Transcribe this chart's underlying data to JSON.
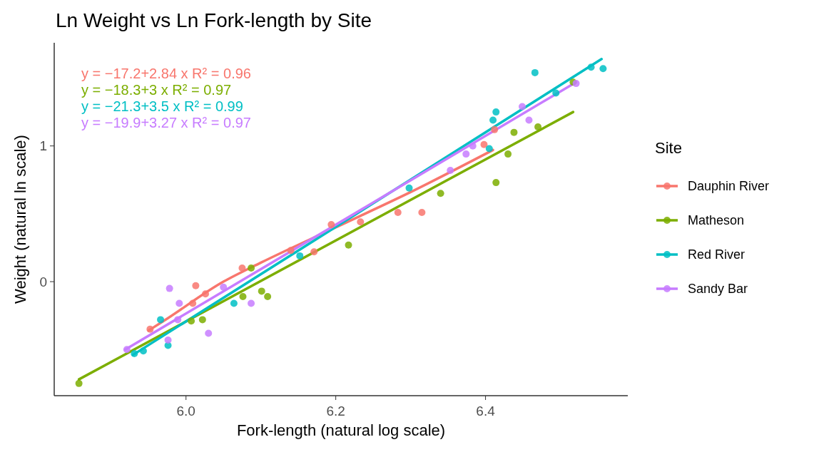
{
  "chart_data": {
    "type": "scatter",
    "title": "Ln Weight vs Ln Fork-length by Site",
    "xlabel": "Fork-length (natural log scale)",
    "ylabel": "Weight (natural ln scale)",
    "legend_title": "Site",
    "legend": "right",
    "grid": false,
    "marker": "circle",
    "xlim": [
      5.824,
      6.59
    ],
    "ylim": [
      -0.84,
      1.76
    ],
    "xticks": [
      {
        "value": 6.0,
        "label": "6.0"
      },
      {
        "value": 6.2,
        "label": "6.2"
      },
      {
        "value": 6.4,
        "label": "6.4"
      }
    ],
    "yticks": [
      0,
      1
    ],
    "series": [
      {
        "name": "Dauphin River",
        "color": "#f8766d",
        "x": [
          5.952,
          6.009,
          6.013,
          6.026,
          6.075,
          6.14,
          6.171,
          6.194,
          6.233,
          6.283,
          6.315,
          6.398,
          6.412
        ],
        "values": [
          -0.35,
          -0.16,
          -0.03,
          -0.09,
          0.1,
          0.23,
          0.22,
          0.42,
          0.44,
          0.51,
          0.51,
          1.01,
          1.12
        ]
      },
      {
        "name": "Matheson",
        "color": "#7cae00",
        "x": [
          5.857,
          6.007,
          6.022,
          6.076,
          6.087,
          6.101,
          6.109,
          6.217,
          6.34,
          6.414,
          6.43,
          6.438,
          6.47,
          6.517
        ],
        "values": [
          -0.75,
          -0.29,
          -0.28,
          -0.11,
          0.1,
          -0.07,
          -0.11,
          0.27,
          0.65,
          0.73,
          0.94,
          1.1,
          1.14,
          1.47
        ]
      },
      {
        "name": "Red River",
        "color": "#00bfc4",
        "x": [
          5.931,
          5.943,
          5.966,
          5.976,
          6.064,
          6.152,
          6.298,
          6.405,
          6.41,
          6.414,
          6.466,
          6.494,
          6.541,
          6.557
        ],
        "values": [
          -0.53,
          -0.51,
          -0.28,
          -0.47,
          -0.16,
          0.19,
          0.69,
          0.98,
          1.19,
          1.25,
          1.54,
          1.39,
          1.58,
          1.57
        ]
      },
      {
        "name": "Sandy Bar",
        "color": "#c77cff",
        "x": [
          5.921,
          5.976,
          5.978,
          5.989,
          5.991,
          6.03,
          6.05,
          6.087,
          6.353,
          6.374,
          6.383,
          6.449,
          6.458,
          6.521
        ],
        "values": [
          -0.5,
          -0.43,
          -0.05,
          -0.28,
          -0.16,
          -0.38,
          -0.04,
          -0.16,
          0.82,
          0.94,
          1.0,
          1.29,
          1.19,
          1.46
        ]
      },
      {
        "type": "line",
        "marker": "none",
        "color": "#f8766d",
        "x": [
          5.95,
          5.97,
          6.05,
          6.1,
          6.2,
          6.3,
          6.41
        ],
        "values": [
          -0.36,
          -0.29,
          0.0,
          0.14,
          0.4,
          0.66,
          0.97
        ]
      },
      {
        "type": "line",
        "marker": "none",
        "color": "#7cae00",
        "x": [
          5.857,
          6.517
        ],
        "values": [
          -0.72,
          1.25
        ]
      },
      {
        "type": "line",
        "marker": "none",
        "color": "#00bfc4",
        "x": [
          5.929,
          6.555
        ],
        "values": [
          -0.54,
          1.64
        ]
      },
      {
        "type": "line",
        "marker": "none",
        "color": "#c77cff",
        "x": [
          5.919,
          6.521
        ],
        "values": [
          -0.5,
          1.47
        ]
      }
    ],
    "annotations": [
      "y = −17.2+2.84 x  R² = 0.96",
      "y = −18.3+3 x  R² = 0.97",
      "y = −21.3+3.5 x  R² = 0.99",
      "y = −19.9+3.27 x  R² = 0.97"
    ]
  }
}
